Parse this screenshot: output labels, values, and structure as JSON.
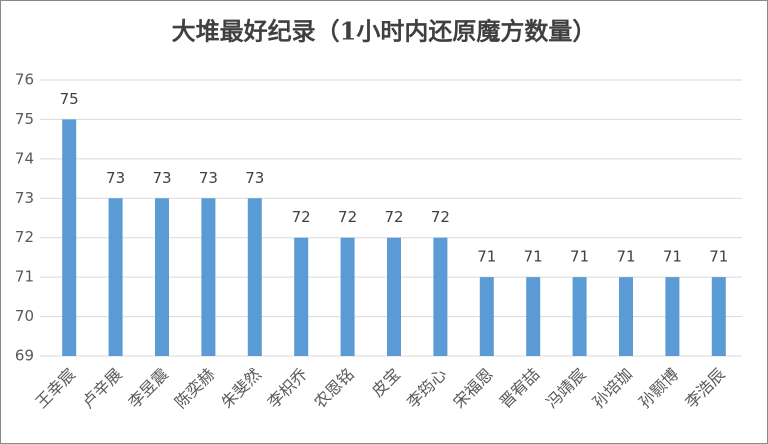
{
  "chart_data": {
    "type": "bar",
    "title": "大堆最好纪录（1小时内还原魔方数量）",
    "categories": [
      "王幸宸",
      "卢辛展",
      "李昱震",
      "陈奕赫",
      "朱斐然",
      "李枳乔",
      "农恩铭",
      "皮宝",
      "李筠心",
      "宋福恩",
      "晋宥喆",
      "冯靖宸",
      "孙培珈",
      "孙颢博",
      "李浩辰"
    ],
    "values": [
      75,
      73,
      73,
      73,
      73,
      72,
      72,
      72,
      72,
      71,
      71,
      71,
      71,
      71,
      71
    ],
    "color": "#5b9bd5",
    "ylim": [
      69,
      76
    ],
    "yticks": [
      69,
      70,
      71,
      72,
      73,
      74,
      75,
      76
    ],
    "grid": true
  }
}
